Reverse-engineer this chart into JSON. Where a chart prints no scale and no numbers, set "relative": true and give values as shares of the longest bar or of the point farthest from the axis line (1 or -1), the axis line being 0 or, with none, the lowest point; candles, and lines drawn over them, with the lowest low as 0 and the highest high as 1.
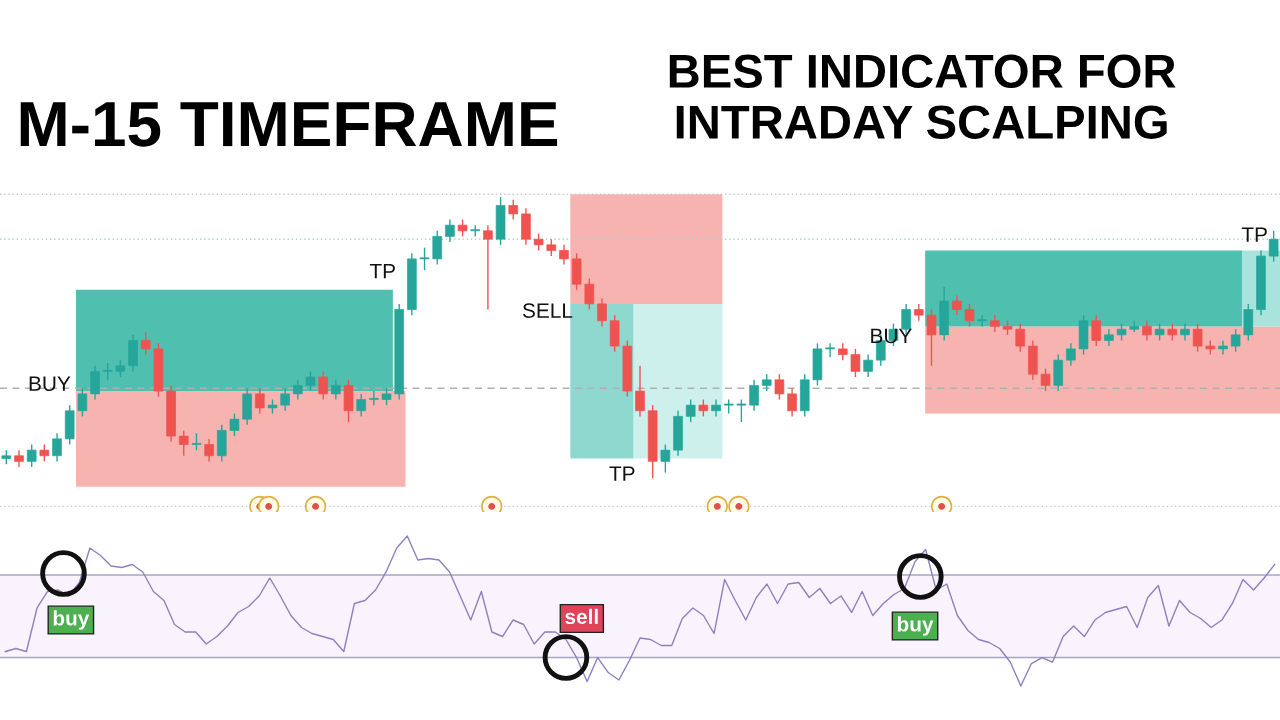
{
  "chart_data": [
    {
      "type": "candlestick",
      "title": "M-15 TIMEFRAME",
      "subtitle": "BEST INDICATOR FOR INTRADAY SCALPING",
      "relative": true,
      "categories": [
        null,
        null,
        null,
        null,
        null,
        null,
        null,
        null,
        null,
        null,
        null,
        null,
        null,
        null,
        null,
        null,
        null,
        null,
        null,
        null,
        null,
        null,
        null,
        null,
        null,
        null,
        null,
        null,
        null,
        null,
        null,
        null,
        null,
        null,
        null,
        null,
        null,
        null,
        null,
        null,
        null,
        null,
        null,
        null,
        null,
        null,
        null,
        null,
        null,
        null,
        null,
        null,
        null,
        null,
        null,
        null,
        null,
        null,
        null,
        null,
        null,
        null,
        null,
        null,
        null,
        null,
        null,
        null,
        null,
        null,
        null,
        null,
        null,
        null,
        null,
        null,
        null,
        null,
        null,
        null,
        null,
        null,
        null,
        null,
        null,
        null,
        null,
        null,
        null,
        null,
        null,
        null,
        null,
        null,
        null,
        null,
        null,
        null,
        null,
        null,
        null
      ],
      "ohlc": [
        [
          0.07,
          0.1,
          0.05,
          0.08
        ],
        [
          0.08,
          0.1,
          0.04,
          0.06
        ],
        [
          0.06,
          0.12,
          0.04,
          0.1
        ],
        [
          0.1,
          0.12,
          0.06,
          0.08
        ],
        [
          0.08,
          0.16,
          0.06,
          0.14
        ],
        [
          0.14,
          0.26,
          0.12,
          0.24
        ],
        [
          0.24,
          0.32,
          0.22,
          0.3
        ],
        [
          0.3,
          0.4,
          0.28,
          0.38
        ],
        [
          0.38,
          0.41,
          0.35,
          0.38
        ],
        [
          0.38,
          0.42,
          0.36,
          0.4
        ],
        [
          0.4,
          0.51,
          0.38,
          0.49
        ],
        [
          0.49,
          0.52,
          0.44,
          0.46
        ],
        [
          0.46,
          0.48,
          0.29,
          0.31
        ],
        [
          0.31,
          0.33,
          0.13,
          0.15
        ],
        [
          0.15,
          0.17,
          0.08,
          0.12
        ],
        [
          0.12,
          0.16,
          0.1,
          0.12
        ],
        [
          0.12,
          0.14,
          0.06,
          0.08
        ],
        [
          0.08,
          0.19,
          0.06,
          0.17
        ],
        [
          0.17,
          0.23,
          0.15,
          0.21
        ],
        [
          0.21,
          0.32,
          0.19,
          0.3
        ],
        [
          0.3,
          0.32,
          0.23,
          0.25
        ],
        [
          0.25,
          0.28,
          0.23,
          0.26
        ],
        [
          0.26,
          0.32,
          0.24,
          0.3
        ],
        [
          0.3,
          0.35,
          0.28,
          0.33
        ],
        [
          0.33,
          0.38,
          0.31,
          0.36
        ],
        [
          0.36,
          0.38,
          0.28,
          0.3
        ],
        [
          0.3,
          0.35,
          0.28,
          0.33
        ],
        [
          0.33,
          0.35,
          0.2,
          0.24
        ],
        [
          0.24,
          0.3,
          0.22,
          0.28
        ],
        [
          0.28,
          0.31,
          0.26,
          0.28
        ],
        [
          0.28,
          0.32,
          0.26,
          0.3
        ],
        [
          0.3,
          0.62,
          0.28,
          0.6
        ],
        [
          0.6,
          0.8,
          0.58,
          0.78
        ],
        [
          0.78,
          0.82,
          0.74,
          0.78
        ],
        [
          0.78,
          0.88,
          0.76,
          0.86
        ],
        [
          0.86,
          0.92,
          0.84,
          0.9
        ],
        [
          0.9,
          0.92,
          0.86,
          0.88
        ],
        [
          0.88,
          0.9,
          0.86,
          0.88
        ],
        [
          0.88,
          0.9,
          0.6,
          0.85
        ],
        [
          0.85,
          1.0,
          0.83,
          0.97
        ],
        [
          0.97,
          0.99,
          0.92,
          0.94
        ],
        [
          0.94,
          0.96,
          0.83,
          0.85
        ],
        [
          0.85,
          0.87,
          0.81,
          0.83
        ],
        [
          0.83,
          0.85,
          0.79,
          0.81
        ],
        [
          0.81,
          0.83,
          0.76,
          0.78
        ],
        [
          0.78,
          0.8,
          0.67,
          0.69
        ],
        [
          0.69,
          0.71,
          0.6,
          0.62
        ],
        [
          0.62,
          0.64,
          0.54,
          0.56
        ],
        [
          0.56,
          0.58,
          0.45,
          0.47
        ],
        [
          0.47,
          0.49,
          0.29,
          0.31
        ],
        [
          0.31,
          0.4,
          0.22,
          0.24
        ],
        [
          0.24,
          0.26,
          0.0,
          0.06
        ],
        [
          0.06,
          0.12,
          0.02,
          0.1
        ],
        [
          0.1,
          0.24,
          0.08,
          0.22
        ],
        [
          0.22,
          0.28,
          0.2,
          0.26
        ],
        [
          0.26,
          0.28,
          0.22,
          0.24
        ],
        [
          0.24,
          0.28,
          0.22,
          0.26
        ],
        [
          0.26,
          0.28,
          0.23,
          0.26
        ],
        [
          0.26,
          0.28,
          0.2,
          0.26
        ],
        [
          0.26,
          0.35,
          0.24,
          0.33
        ],
        [
          0.33,
          0.37,
          0.31,
          0.35
        ],
        [
          0.35,
          0.37,
          0.28,
          0.3
        ],
        [
          0.3,
          0.32,
          0.22,
          0.24
        ],
        [
          0.24,
          0.37,
          0.22,
          0.35
        ],
        [
          0.35,
          0.48,
          0.33,
          0.46
        ],
        [
          0.46,
          0.48,
          0.43,
          0.46
        ],
        [
          0.46,
          0.48,
          0.42,
          0.44
        ],
        [
          0.44,
          0.46,
          0.36,
          0.38
        ],
        [
          0.38,
          0.44,
          0.36,
          0.42
        ],
        [
          0.42,
          0.51,
          0.4,
          0.49
        ],
        [
          0.49,
          0.55,
          0.47,
          0.53
        ],
        [
          0.53,
          0.62,
          0.51,
          0.6
        ],
        [
          0.6,
          0.62,
          0.56,
          0.58
        ],
        [
          0.58,
          0.6,
          0.4,
          0.51
        ],
        [
          0.51,
          0.68,
          0.49,
          0.63
        ],
        [
          0.63,
          0.65,
          0.58,
          0.6
        ],
        [
          0.6,
          0.62,
          0.54,
          0.56
        ],
        [
          0.56,
          0.58,
          0.54,
          0.56
        ],
        [
          0.56,
          0.58,
          0.52,
          0.54
        ],
        [
          0.54,
          0.56,
          0.51,
          0.53
        ],
        [
          0.53,
          0.55,
          0.45,
          0.47
        ],
        [
          0.47,
          0.49,
          0.35,
          0.37
        ],
        [
          0.37,
          0.39,
          0.31,
          0.33
        ],
        [
          0.33,
          0.44,
          0.31,
          0.42
        ],
        [
          0.42,
          0.48,
          0.4,
          0.46
        ],
        [
          0.46,
          0.58,
          0.44,
          0.56
        ],
        [
          0.56,
          0.58,
          0.47,
          0.49
        ],
        [
          0.49,
          0.53,
          0.47,
          0.51
        ],
        [
          0.51,
          0.55,
          0.49,
          0.53
        ],
        [
          0.53,
          0.56,
          0.52,
          0.54
        ],
        [
          0.54,
          0.56,
          0.49,
          0.51
        ],
        [
          0.51,
          0.55,
          0.49,
          0.53
        ],
        [
          0.53,
          0.55,
          0.49,
          0.51
        ],
        [
          0.51,
          0.55,
          0.49,
          0.53
        ],
        [
          0.53,
          0.55,
          0.45,
          0.47
        ],
        [
          0.47,
          0.49,
          0.44,
          0.46
        ],
        [
          0.46,
          0.49,
          0.44,
          0.47
        ],
        [
          0.47,
          0.53,
          0.45,
          0.51
        ],
        [
          0.51,
          0.62,
          0.49,
          0.6
        ],
        [
          0.6,
          0.81,
          0.58,
          0.79
        ],
        [
          0.79,
          0.88,
          0.77,
          0.85
        ]
      ],
      "ref_lines": [
        {
          "axis": "y",
          "value": 1.01,
          "color": "#c8c8c8",
          "line_style": "dotted"
        },
        {
          "axis": "y",
          "value": 0.85,
          "color": "#a8d8d0",
          "line_style": "dotted"
        },
        {
          "axis": "y",
          "value": 0.32,
          "color": "#b0b0b0",
          "line_style": "dashed"
        },
        {
          "axis": "y",
          "value": -0.1,
          "color": "#c8c8c8",
          "line_style": "dotted"
        }
      ],
      "annotations": [
        "BUY",
        "TP",
        "SELL",
        "TP",
        "BUY",
        "TP"
      ]
    },
    {
      "type": "line",
      "relative": true,
      "marker": "none",
      "line_style": "solid",
      "categories": [
        null,
        null,
        null,
        null,
        null,
        null,
        null,
        null,
        null,
        null,
        null,
        null,
        null,
        null,
        null,
        null,
        null,
        null,
        null,
        null,
        null,
        null,
        null,
        null,
        null,
        null,
        null,
        null,
        null,
        null,
        null,
        null,
        null,
        null,
        null,
        null,
        null,
        null,
        null,
        null,
        null,
        null,
        null,
        null,
        null,
        null,
        null,
        null,
        null,
        null,
        null,
        null,
        null,
        null,
        null,
        null,
        null,
        null,
        null,
        null,
        null,
        null,
        null,
        null,
        null,
        null,
        null,
        null,
        null,
        null,
        null,
        null,
        null,
        null,
        null,
        null,
        null,
        null,
        null,
        null,
        null,
        null,
        null,
        null,
        null,
        null,
        null,
        null,
        null,
        null,
        null,
        null,
        null,
        null,
        null,
        null,
        null,
        null,
        null,
        null,
        null,
        null,
        null,
        null,
        null,
        null,
        null,
        null,
        null,
        null,
        null,
        null,
        null,
        null,
        null,
        null,
        null,
        null,
        null,
        null,
        null
      ],
      "series": [
        {
          "color": "#8f7fc0",
          "values": [
            0.23,
            0.25,
            0.23,
            0.52,
            0.63,
            0.64,
            0.6,
            0.69,
            0.92,
            0.87,
            0.8,
            0.79,
            0.81,
            0.76,
            0.63,
            0.57,
            0.41,
            0.36,
            0.36,
            0.28,
            0.33,
            0.4,
            0.49,
            0.53,
            0.6,
            0.72,
            0.6,
            0.47,
            0.39,
            0.35,
            0.33,
            0.31,
            0.23,
            0.55,
            0.57,
            0.64,
            0.76,
            0.92,
            1.0,
            0.84,
            0.85,
            0.84,
            0.76,
            0.6,
            0.44,
            0.63,
            0.36,
            0.33,
            0.44,
            0.41,
            0.28,
            0.36,
            0.36,
            0.31,
            0.19,
            0.03,
            0.19,
            0.09,
            0.04,
            0.17,
            0.32,
            0.31,
            0.27,
            0.27,
            0.45,
            0.52,
            0.47,
            0.35,
            0.71,
            0.57,
            0.44,
            0.59,
            0.68,
            0.55,
            0.68,
            0.69,
            0.59,
            0.65,
            0.55,
            0.6,
            0.49,
            0.63,
            0.47,
            0.55,
            0.61,
            0.65,
            0.83,
            0.91,
            0.64,
            0.68,
            0.47,
            0.37,
            0.31,
            0.29,
            0.25,
            0.16,
            0.0,
            0.15,
            0.19,
            0.16,
            0.33,
            0.4,
            0.33,
            0.44,
            0.49,
            0.51,
            0.53,
            0.39,
            0.59,
            0.67,
            0.4,
            0.57,
            0.49,
            0.45,
            0.39,
            0.44,
            0.55,
            0.71,
            0.64,
            0.72,
            0.81
          ]
        }
      ],
      "ref_lines": [
        {
          "axis": "y",
          "value": 0.74,
          "color": "#a9a6c4",
          "line_style": "solid"
        },
        {
          "axis": "y",
          "value": 0.19,
          "color": "#a9a6c4",
          "line_style": "solid"
        }
      ],
      "bands": [
        {
          "axis": "y",
          "from": 0.19,
          "to": 0.74,
          "color": "#f8f3fd"
        }
      ],
      "annotations": [
        "buy",
        "sell",
        "buy"
      ]
    }
  ]
}
